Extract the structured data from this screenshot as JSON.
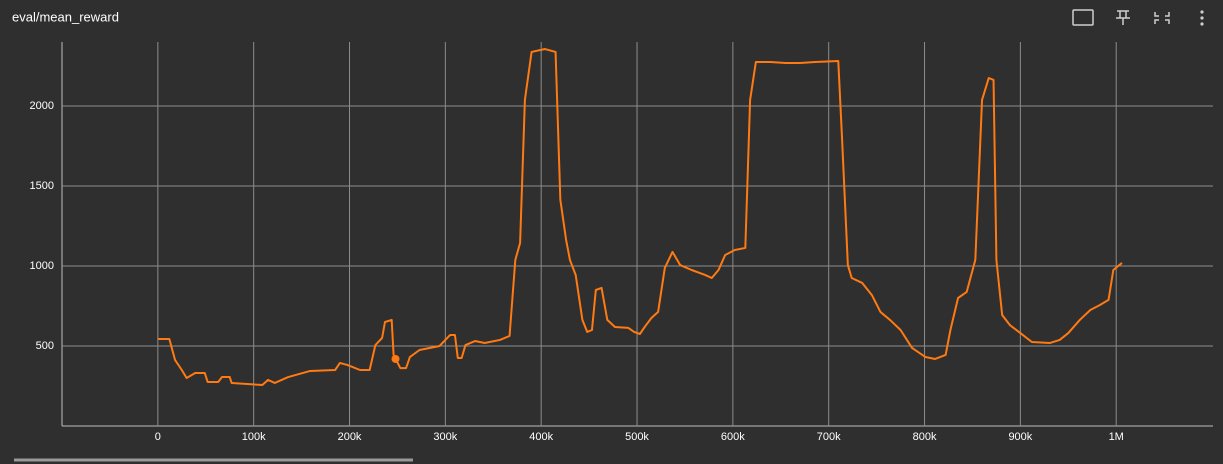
{
  "chart_data": {
    "type": "line",
    "title": "eval/mean_reward",
    "x": [
      0,
      12000,
      18000,
      25000,
      30000,
      39000,
      49000,
      52000,
      63000,
      67000,
      75000,
      77000,
      109000,
      115000,
      122000,
      136000,
      159000,
      185000,
      190000,
      198000,
      211000,
      221000,
      227000,
      234000,
      237000,
      244000,
      246000,
      253000,
      259000,
      263000,
      273000,
      294000,
      305000,
      310000,
      313000,
      317000,
      321000,
      331000,
      341000,
      357000,
      367000,
      373000,
      378000,
      383000,
      390000,
      404000,
      415000,
      420000,
      426000,
      430000,
      436000,
      443000,
      448000,
      453000,
      457000,
      463000,
      469000,
      477000,
      491000,
      497000,
      503000,
      508000,
      515000,
      522000,
      529000,
      537000,
      545000,
      557000,
      571000,
      578000,
      585000,
      592000,
      602000,
      613000,
      618000,
      624000,
      639000,
      655000,
      670000,
      686000,
      710000,
      714000,
      720000,
      724000,
      735000,
      745000,
      754000,
      764000,
      775000,
      787000,
      801000,
      811000,
      822000,
      827000,
      835000,
      844000,
      853000,
      860000,
      867000,
      872000,
      875000,
      881000,
      889000,
      900000,
      912000,
      931000,
      941000,
      950000,
      962000,
      973000,
      983000,
      992000,
      997000,
      1006000
    ],
    "series": [
      {
        "color": "#ff7a12",
        "values": [
          544,
          544,
          412,
          350,
          300,
          331,
          331,
          275,
          275,
          306,
          306,
          269,
          256,
          288,
          269,
          306,
          344,
          350,
          394,
          381,
          350,
          350,
          506,
          550,
          650,
          663,
          444,
          362,
          362,
          431,
          475,
          500,
          569,
          569,
          425,
          425,
          506,
          531,
          519,
          538,
          563,
          1038,
          1144,
          2038,
          2338,
          2356,
          2338,
          1413,
          1163,
          1038,
          944,
          663,
          588,
          600,
          850,
          863,
          663,
          619,
          613,
          588,
          575,
          619,
          675,
          713,
          988,
          1088,
          1006,
          975,
          944,
          925,
          975,
          1069,
          1100,
          1113,
          2038,
          2275,
          2275,
          2269,
          2269,
          2275,
          2281,
          1788,
          1006,
          925,
          894,
          819,
          713,
          663,
          600,
          488,
          431,
          419,
          444,
          600,
          800,
          838,
          1038,
          2038,
          2175,
          2163,
          1038,
          694,
          631,
          581,
          525,
          519,
          538,
          581,
          663,
          725,
          756,
          788,
          975,
          1019
        ]
      }
    ],
    "marker": {
      "x": 248000,
      "y": 419
    },
    "xlim": [
      -100000,
      1101000
    ],
    "xticks": [
      0,
      {
        "value": 100000,
        "label": "100k"
      },
      {
        "value": 200000,
        "label": "200k"
      },
      {
        "value": 300000,
        "label": "300k"
      },
      {
        "value": 400000,
        "label": "400k"
      },
      {
        "value": 500000,
        "label": "500k"
      },
      {
        "value": 600000,
        "label": "600k"
      },
      {
        "value": 700000,
        "label": "700k"
      },
      {
        "value": 800000,
        "label": "800k"
      },
      {
        "value": 900000,
        "label": "900k"
      },
      {
        "value": 1000000,
        "label": "1M"
      }
    ],
    "ylim": [
      0,
      2400
    ],
    "yticks": [
      500,
      1000,
      1500,
      2000
    ],
    "grid": true
  }
}
